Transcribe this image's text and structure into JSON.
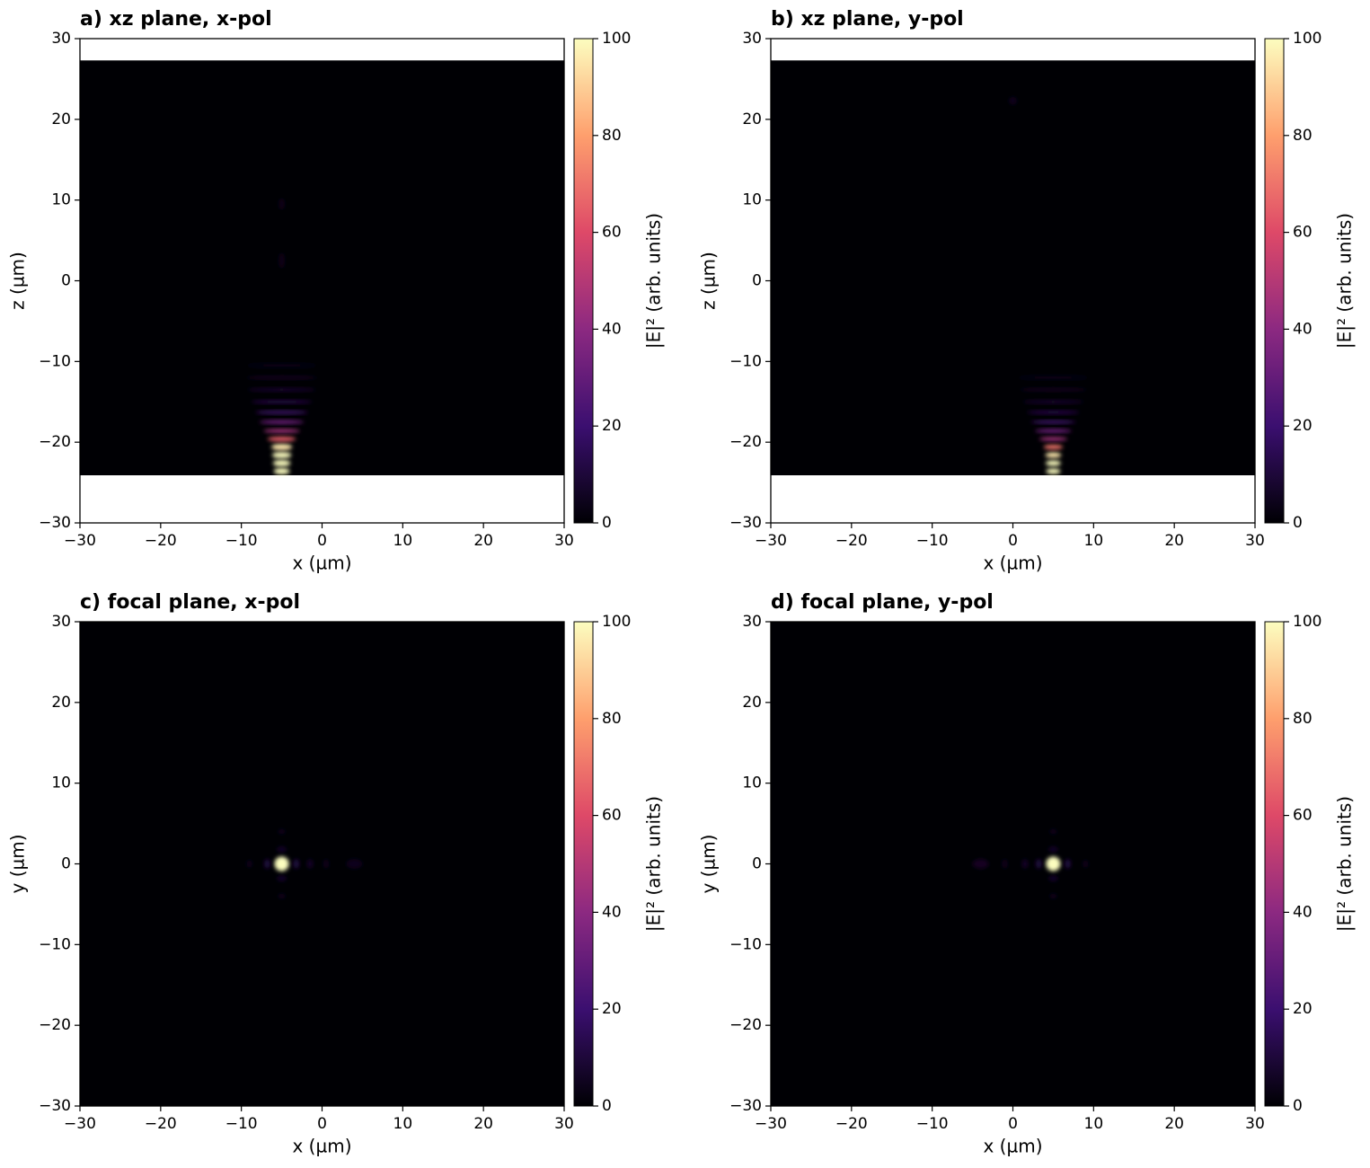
{
  "chart_data": [
    {
      "type": "heatmap",
      "title": "a)  xz plane, x-pol",
      "x_label": "x (µm)",
      "y_label": "z (µm)",
      "colorbar_label": "|E|² (arb. units)",
      "xlim": [
        -30,
        30
      ],
      "ylim": [
        -30,
        30
      ],
      "clim": [
        0,
        100
      ],
      "xticks": [
        {
          "value": -30,
          "label": "−30"
        },
        {
          "value": -20,
          "label": "−20"
        },
        {
          "value": -10,
          "label": "−10"
        },
        0,
        10,
        20,
        30
      ],
      "yticks": [
        {
          "value": -30,
          "label": "−30"
        },
        {
          "value": -20,
          "label": "−20"
        },
        {
          "value": -10,
          "label": "−10"
        },
        0,
        10,
        20,
        30
      ],
      "cticks": [
        0,
        20,
        40,
        60,
        80,
        100
      ],
      "field_extent": [
        -24.1,
        27.3
      ],
      "colors": [
        "#000004",
        "#3b0f70",
        "#8c2981",
        "#de4968",
        "#fe9f6d",
        "#fcfdbf"
      ],
      "spots": [
        {
          "x": -5,
          "y": -23.6,
          "value": 100,
          "width": 2,
          "height": 0.8
        },
        {
          "x": -5,
          "y": -22.6,
          "value": 100,
          "width": 2.2,
          "height": 0.8
        },
        {
          "x": -5,
          "y": -21.6,
          "value": 100,
          "width": 2.4,
          "height": 0.8
        },
        {
          "x": -5,
          "y": -20.6,
          "value": 95,
          "width": 2.6,
          "height": 0.8
        },
        {
          "x": -5,
          "y": -19.6,
          "value": 65,
          "width": 3.5,
          "height": 0.6
        },
        {
          "x": -5,
          "y": -18.6,
          "value": 45,
          "width": 4.5,
          "height": 0.5
        },
        {
          "x": -5,
          "y": -17.5,
          "value": 32,
          "width": 5.5,
          "height": 0.5
        },
        {
          "x": -5,
          "y": -16.3,
          "value": 22,
          "width": 6.5,
          "height": 0.4
        },
        {
          "x": -5,
          "y": -15,
          "value": 14,
          "width": 7.5,
          "height": 0.4
        },
        {
          "x": -5,
          "y": -13.5,
          "value": 9,
          "width": 8.5,
          "height": 0.4
        },
        {
          "x": -5,
          "y": -12,
          "value": 6,
          "width": 9,
          "height": 0.4
        },
        {
          "x": -5,
          "y": -10.5,
          "value": 4,
          "width": 9,
          "height": 0.4
        },
        {
          "x": -5,
          "y": 2.5,
          "value": 3,
          "width": 0.8,
          "height": 2
        },
        {
          "x": -5,
          "y": 9.5,
          "value": 3,
          "width": 0.8,
          "height": 1.5
        }
      ]
    },
    {
      "type": "heatmap",
      "title": "b)  xz plane, y-pol",
      "x_label": "x (µm)",
      "y_label": "z (µm)",
      "colorbar_label": "|E|² (arb. units)",
      "xlim": [
        -30,
        30
      ],
      "ylim": [
        -30,
        30
      ],
      "clim": [
        0,
        100
      ],
      "xticks": [
        {
          "value": -30,
          "label": "−30"
        },
        {
          "value": -20,
          "label": "−20"
        },
        {
          "value": -10,
          "label": "−10"
        },
        0,
        10,
        20,
        30
      ],
      "yticks": [
        {
          "value": -30,
          "label": "−30"
        },
        {
          "value": -20,
          "label": "−20"
        },
        {
          "value": -10,
          "label": "−10"
        },
        0,
        10,
        20,
        30
      ],
      "cticks": [
        0,
        20,
        40,
        60,
        80,
        100
      ],
      "field_extent": [
        -24.1,
        27.3
      ],
      "colors": [
        "#000004",
        "#3b0f70",
        "#8c2981",
        "#de4968",
        "#fe9f6d",
        "#fcfdbf"
      ],
      "spots": [
        {
          "x": 5,
          "y": -23.6,
          "value": 100,
          "width": 1.8,
          "height": 0.7
        },
        {
          "x": 5,
          "y": -22.6,
          "value": 100,
          "width": 1.9,
          "height": 0.7
        },
        {
          "x": 5,
          "y": -21.6,
          "value": 95,
          "width": 2,
          "height": 0.7
        },
        {
          "x": 5,
          "y": -20.6,
          "value": 70,
          "width": 2.4,
          "height": 0.6
        },
        {
          "x": 5,
          "y": -19.6,
          "value": 45,
          "width": 3.5,
          "height": 0.5
        },
        {
          "x": 5,
          "y": -18.6,
          "value": 32,
          "width": 4.5,
          "height": 0.5
        },
        {
          "x": 5,
          "y": -17.5,
          "value": 22,
          "width": 5.5,
          "height": 0.4
        },
        {
          "x": 5,
          "y": -16.3,
          "value": 14,
          "width": 6.5,
          "height": 0.4
        },
        {
          "x": 5,
          "y": -15,
          "value": 9,
          "width": 7.5,
          "height": 0.4
        },
        {
          "x": 5,
          "y": -13.5,
          "value": 6,
          "width": 8.5,
          "height": 0.4
        },
        {
          "x": 5,
          "y": -12,
          "value": 4,
          "width": 9,
          "height": 0.4
        },
        {
          "x": 0,
          "y": 22.3,
          "value": 4,
          "width": 1,
          "height": 1
        }
      ]
    },
    {
      "type": "heatmap",
      "title": "c)  focal plane, x-pol",
      "x_label": "x (µm)",
      "y_label": "y (µm)",
      "colorbar_label": "|E|² (arb. units)",
      "xlim": [
        -30,
        30
      ],
      "ylim": [
        -30,
        30
      ],
      "clim": [
        0,
        100
      ],
      "xticks": [
        {
          "value": -30,
          "label": "−30"
        },
        {
          "value": -20,
          "label": "−20"
        },
        {
          "value": -10,
          "label": "−10"
        },
        0,
        10,
        20,
        30
      ],
      "yticks": [
        {
          "value": -30,
          "label": "−30"
        },
        {
          "value": -20,
          "label": "−20"
        },
        {
          "value": -10,
          "label": "−10"
        },
        0,
        10,
        20,
        30
      ],
      "cticks": [
        0,
        20,
        40,
        60,
        80,
        100
      ],
      "field_extent": [
        -30,
        30
      ],
      "colors": [
        "#000004",
        "#3b0f70",
        "#8c2981",
        "#de4968",
        "#fe9f6d",
        "#fcfdbf"
      ],
      "spots": [
        {
          "x": -5,
          "y": 0,
          "value": 100,
          "width": 1.8,
          "height": 1.8
        },
        {
          "x": -6.8,
          "y": 0,
          "value": 12,
          "width": 0.7,
          "height": 1.2
        },
        {
          "x": -3.2,
          "y": 0,
          "value": 12,
          "width": 0.7,
          "height": 1.2
        },
        {
          "x": -1.5,
          "y": 0,
          "value": 7,
          "width": 0.7,
          "height": 1.2
        },
        {
          "x": 0.5,
          "y": 0,
          "value": 5,
          "width": 0.7,
          "height": 1.2
        },
        {
          "x": 4,
          "y": 0,
          "value": 5,
          "width": 2,
          "height": 1.2
        },
        {
          "x": -9,
          "y": 0,
          "value": 4,
          "width": 0.7,
          "height": 1
        },
        {
          "x": -5,
          "y": 1.8,
          "value": 8,
          "width": 1.2,
          "height": 0.6
        },
        {
          "x": -5,
          "y": -1.8,
          "value": 8,
          "width": 1.2,
          "height": 0.6
        },
        {
          "x": -5,
          "y": 4,
          "value": 4,
          "width": 1,
          "height": 0.6
        },
        {
          "x": -5,
          "y": -4,
          "value": 4,
          "width": 1,
          "height": 0.6
        }
      ]
    },
    {
      "type": "heatmap",
      "title": "d)  focal plane, y-pol",
      "x_label": "x (µm)",
      "y_label": "y (µm)",
      "colorbar_label": "|E|² (arb. units)",
      "xlim": [
        -30,
        30
      ],
      "ylim": [
        -30,
        30
      ],
      "clim": [
        0,
        100
      ],
      "xticks": [
        {
          "value": -30,
          "label": "−30"
        },
        {
          "value": -20,
          "label": "−20"
        },
        {
          "value": -10,
          "label": "−10"
        },
        0,
        10,
        20,
        30
      ],
      "yticks": [
        {
          "value": -30,
          "label": "−30"
        },
        {
          "value": -20,
          "label": "−20"
        },
        {
          "value": -10,
          "label": "−10"
        },
        0,
        10,
        20,
        30
      ],
      "cticks": [
        0,
        20,
        40,
        60,
        80,
        100
      ],
      "field_extent": [
        -30,
        30
      ],
      "colors": [
        "#000004",
        "#3b0f70",
        "#8c2981",
        "#de4968",
        "#fe9f6d",
        "#fcfdbf"
      ],
      "spots": [
        {
          "x": 5,
          "y": 0,
          "value": 100,
          "width": 1.8,
          "height": 1.8
        },
        {
          "x": 3.2,
          "y": 0,
          "value": 12,
          "width": 0.7,
          "height": 1.2
        },
        {
          "x": 6.8,
          "y": 0,
          "value": 12,
          "width": 0.7,
          "height": 1.2
        },
        {
          "x": 1.5,
          "y": 0,
          "value": 7,
          "width": 0.7,
          "height": 1.2
        },
        {
          "x": -1,
          "y": 0,
          "value": 5,
          "width": 0.7,
          "height": 1.2
        },
        {
          "x": -4,
          "y": 0,
          "value": 6,
          "width": 2,
          "height": 1.2
        },
        {
          "x": 9,
          "y": 0,
          "value": 4,
          "width": 0.7,
          "height": 1
        },
        {
          "x": 5,
          "y": 1.8,
          "value": 8,
          "width": 1.2,
          "height": 0.6
        },
        {
          "x": 5,
          "y": -1.8,
          "value": 8,
          "width": 1.2,
          "height": 0.6
        },
        {
          "x": 5,
          "y": 4,
          "value": 4,
          "width": 1,
          "height": 0.6
        },
        {
          "x": 5,
          "y": -4,
          "value": 4,
          "width": 1,
          "height": 0.6
        }
      ]
    }
  ]
}
